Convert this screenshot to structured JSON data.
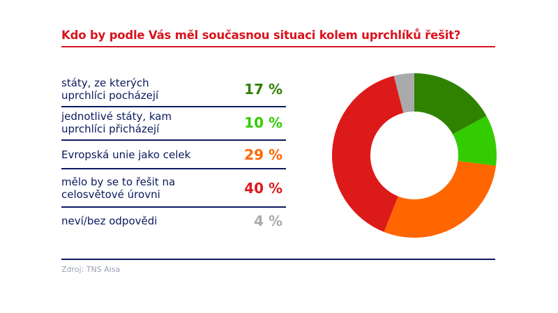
{
  "title": "Kdo by podle Vás měl současnou situaci kolem uprchlíků řešit?",
  "source": "Zdroj: TNS Aisa",
  "chart_data": {
    "type": "pie",
    "donut": true,
    "title": "Kdo by podle Vás měl současnou situaci kolem uprchlíků řešit?",
    "categories": [
      "státy, ze kterých uprchlíci pocházejí",
      "jednotlivé státy, kam uprchlíci přicházejí",
      "Evropská unie jako celek",
      "mělo by se to řešit na celosvětové úrovni",
      "neví/bez odpovědi"
    ],
    "values": [
      17,
      10,
      29,
      40,
      4
    ],
    "labels": [
      "17 %",
      "10 %",
      "29 %",
      "40 %",
      "4 %"
    ],
    "colors": [
      "#2e8200",
      "#33cc00",
      "#ff6600",
      "#dd1a1a",
      "#aaaaaa"
    ]
  }
}
